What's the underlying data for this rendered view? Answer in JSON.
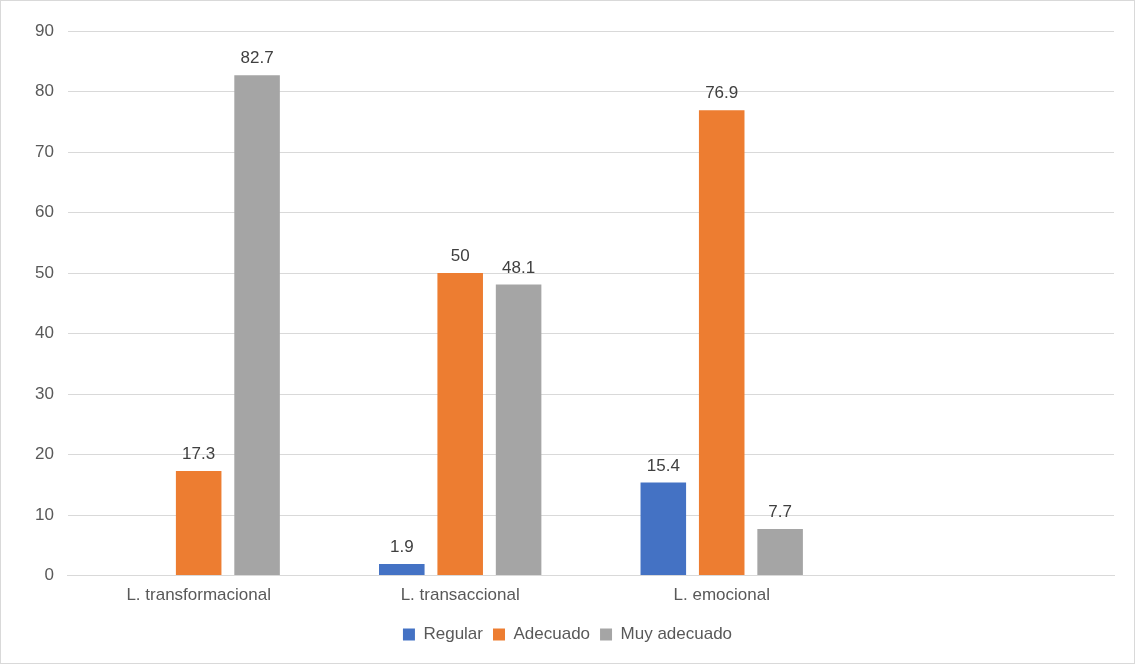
{
  "chart_data": {
    "type": "bar",
    "categories": [
      "L. transformacional",
      "L. transaccional",
      "L. emocional",
      null
    ],
    "series": [
      {
        "name": "Regular",
        "color": "#4472c4",
        "values": [
          null,
          1.9,
          15.4,
          null
        ]
      },
      {
        "name": "Adecuado",
        "color": "#ed7d31",
        "values": [
          17.3,
          50,
          76.9,
          null
        ]
      },
      {
        "name": "Muy adecuado",
        "color": "#a5a5a5",
        "values": [
          82.7,
          48.1,
          7.7,
          null
        ]
      }
    ],
    "ylim": [
      0,
      90
    ],
    "yticks": [
      0,
      10,
      20,
      30,
      40,
      50,
      60,
      70,
      80,
      90
    ],
    "grid": "y",
    "legend": "bottom",
    "data_labels": true
  }
}
